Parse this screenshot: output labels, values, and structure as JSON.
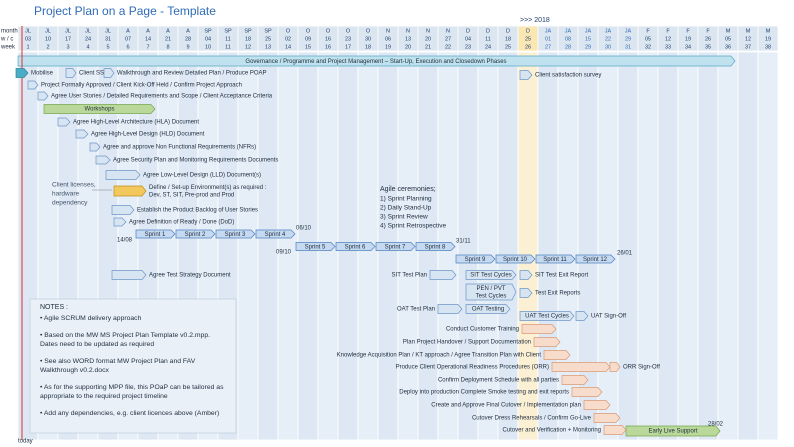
{
  "header": {
    "title": "Project Plan on a Page - Template",
    "year_marker": ">>> 2018",
    "row_labels": [
      "month",
      "w / c",
      "week"
    ]
  },
  "timeline": {
    "months": [
      "JL",
      "JL",
      "JL",
      "JL",
      "JL",
      "A",
      "A",
      "A",
      "A",
      "SP",
      "SP",
      "SP",
      "SP",
      "O",
      "O",
      "O",
      "O",
      "O",
      "N",
      "N",
      "N",
      "N",
      "D",
      "D",
      "D",
      "D",
      "JA",
      "JA",
      "JA",
      "JA",
      "JA",
      "F",
      "F",
      "F",
      "F",
      "M",
      "M",
      "M"
    ],
    "week_commencing": [
      "03",
      "10",
      "17",
      "24",
      "31",
      "07",
      "14",
      "21",
      "28",
      "04",
      "11",
      "18",
      "25",
      "02",
      "09",
      "16",
      "23",
      "30",
      "06",
      "13",
      "20",
      "27",
      "04",
      "11",
      "18",
      "25",
      "01",
      "08",
      "15",
      "22",
      "29",
      "05",
      "12",
      "19",
      "26",
      "05",
      "12",
      "19"
    ],
    "weeks": [
      1,
      2,
      3,
      4,
      5,
      6,
      7,
      8,
      9,
      10,
      11,
      12,
      13,
      14,
      15,
      16,
      17,
      18,
      19,
      20,
      21,
      22,
      23,
      24,
      25,
      26,
      27,
      28,
      29,
      30,
      31,
      32,
      33,
      34,
      35,
      36,
      37,
      38
    ]
  },
  "governance": "Governance / Programme and Project Management – Start-Up, Execution and Closedown Phases",
  "tasks": [
    {
      "label": [
        "Mobilise"
      ]
    },
    {
      "label": [
        "Client SS"
      ]
    },
    {
      "label": [
        "Walkthrough and Review Detailed Plan / Produce POAP"
      ]
    },
    {
      "label": [
        "Client satisfaction survey"
      ]
    },
    {
      "label": [
        "Project Formally Approved / Client Kick-Off Held / Confirm Project Approach"
      ]
    },
    {
      "label": [
        "Agree User Stories / Detailed Requirements and Scope / Client Acceptance Criteria"
      ]
    },
    {
      "label": [
        "Workshops"
      ]
    },
    {
      "label": [
        "Agree High-Level Architecture (HLA) Document"
      ]
    },
    {
      "label": [
        "Agree High-Level Design (HLD) Document"
      ]
    },
    {
      "label": [
        "Agree and approve Non Functional Requirements (NFRs)"
      ]
    },
    {
      "label": [
        "Agree Security Plan and Monitoring Requirements Documents"
      ]
    },
    {
      "label": [
        "Agree Low-Level Design (LLD) Document(s)"
      ]
    },
    {
      "label": [
        "Define / Set-up Environment(s) as required :",
        "Dev, ST, SIT, Pre-prod and Prod"
      ]
    },
    {
      "label": [
        "Establish the Product Backlog of User Stories"
      ]
    },
    {
      "label": [
        "Agree Definition of Ready / Done (DoD)"
      ]
    },
    {
      "label": [
        "Agree Test Strategy Document"
      ]
    },
    {
      "label": [
        "SIT Test Plan"
      ]
    },
    {
      "label": [
        "SIT Test Cycles"
      ]
    },
    {
      "label": [
        "SIT Test Exit Report"
      ]
    },
    {
      "label": [
        "PEN / PVT",
        "Test Cycles"
      ]
    },
    {
      "label": [
        "Test Exit Reports"
      ]
    },
    {
      "label": [
        "OAT Test Plan"
      ]
    },
    {
      "label": [
        "OAT Testing"
      ]
    },
    {
      "label": [
        "UAT Test Cycles"
      ]
    },
    {
      "label": [
        "UAT Sign-Off"
      ]
    },
    {
      "label": [
        "Conduct Customer Training"
      ]
    },
    {
      "label": [
        "Plan Project Handover / Support Documentation"
      ]
    },
    {
      "label": [
        "Knowledge Acquisition Plan / KT approach / Agree Transition Plan with Client"
      ]
    },
    {
      "label": [
        "Produce Client Operational Readiness Procedures (ORR)"
      ]
    },
    {
      "label": [
        "ORR Sign-Off"
      ]
    },
    {
      "label": [
        "Confirm Deployment Schedule with all parties"
      ]
    },
    {
      "label": [
        "Deploy into production Complete Smoke testing and exit reports"
      ]
    },
    {
      "label": [
        "Create and Approve Final Cutover / Implementation plan"
      ]
    },
    {
      "label": [
        "Cutover Dress Rehearsals / Confirm Go-Live"
      ]
    },
    {
      "label": [
        "Cutover and Verification + Monitoring"
      ]
    },
    {
      "label": [
        "Early Live Support"
      ]
    }
  ],
  "sprints": [
    "Sprint 1",
    "Sprint 2",
    "Sprint 3",
    "Sprint 4",
    "Sprint 5",
    "Sprint 6",
    "Sprint 7",
    "Sprint 8",
    "Sprint 9",
    "Sprint 10",
    "Sprint 11",
    "Sprint 12"
  ],
  "dates": [
    "14/08",
    "06/10",
    "09/10",
    "31/11",
    "26/01",
    "28/02"
  ],
  "agile": {
    "title": "Agile ceremonies;",
    "items": [
      "1)  Sprint Planning",
      "2)  Daily Stand-Up",
      "3)  Sprint Review",
      "4)  Sprint Retrospective"
    ]
  },
  "dependency_note": [
    "Client licenses,",
    "hardware",
    "dependency"
  ],
  "notes": {
    "title": "NOTES :",
    "items": [
      [
        "• Agile SCRUM delivery approach"
      ],
      [
        "• Based on the MW MS Project Plan Template v0.2.mpp.",
        "Dates need to be updated as required"
      ],
      [
        "• See also WORD format MW Project Plan and FAV",
        "Walkthrough v0.2.docx"
      ],
      [
        "• As for the supporting MPP file, this POaP can be tailored as",
        "appropriate to the required project timeline"
      ],
      [
        "• Add any dependencies, e.g. client licences above (Amber)"
      ]
    ]
  },
  "today": "today"
}
